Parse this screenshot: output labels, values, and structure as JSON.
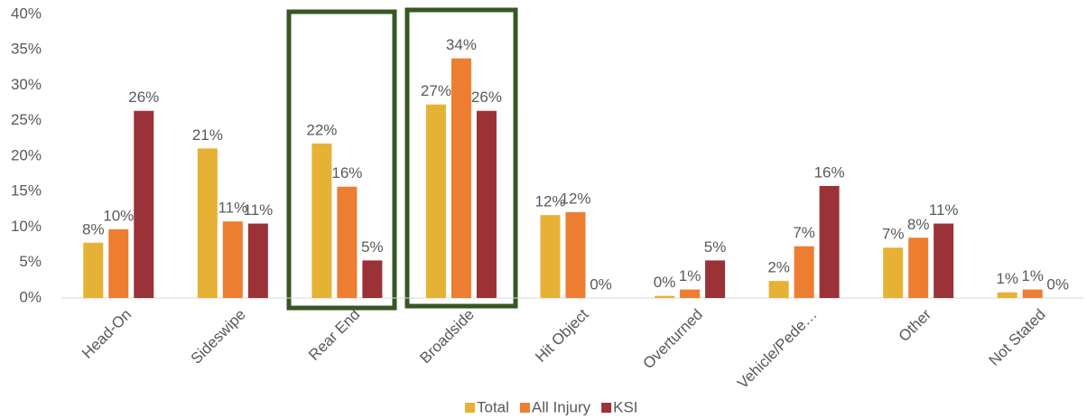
{
  "chart_data": {
    "type": "bar",
    "categories": [
      "Head-On",
      "Sideswipe",
      "Rear End",
      "Broadside",
      "Hit Object",
      "Overturned",
      "Vehicle/Pede…",
      "Other",
      "Not Stated"
    ],
    "series": [
      {
        "name": "Total",
        "color": "#e6b235",
        "values": [
          7.8,
          21.1,
          21.8,
          27.3,
          11.7,
          0.3,
          2.4,
          7.1,
          0.8
        ],
        "value_labels": [
          "8%",
          "21%",
          "22%",
          "27%",
          "12%",
          "0%",
          "2%",
          "7%",
          "1%"
        ]
      },
      {
        "name": "All Injury",
        "color": "#ed7d31",
        "values": [
          9.7,
          10.8,
          15.7,
          33.8,
          12.1,
          1.2,
          7.3,
          8.5,
          1.2
        ],
        "value_labels": [
          "10%",
          "11%",
          "16%",
          "34%",
          "12%",
          "1%",
          "7%",
          "8%",
          "1%"
        ]
      },
      {
        "name": "KSI",
        "color": "#9b3237",
        "values": [
          26.4,
          10.5,
          5.3,
          26.4,
          0,
          5.3,
          15.8,
          10.5,
          0
        ],
        "value_labels": [
          "26%",
          "11%",
          "5%",
          "26%",
          "0%",
          "5%",
          "16%",
          "11%",
          "0%"
        ]
      }
    ],
    "ylim": [
      0,
      40
    ],
    "yticks": [
      {
        "value": 0,
        "label": "0%"
      },
      {
        "value": 5,
        "label": "5%"
      },
      {
        "value": 10,
        "label": "10%"
      },
      {
        "value": 15,
        "label": "15%"
      },
      {
        "value": 20,
        "label": "20%"
      },
      {
        "value": 25,
        "label": "25%"
      },
      {
        "value": 30,
        "label": "30%"
      },
      {
        "value": 35,
        "label": "35%"
      },
      {
        "value": 40,
        "label": "40%"
      }
    ],
    "grid": false,
    "legend": "bottom"
  }
}
